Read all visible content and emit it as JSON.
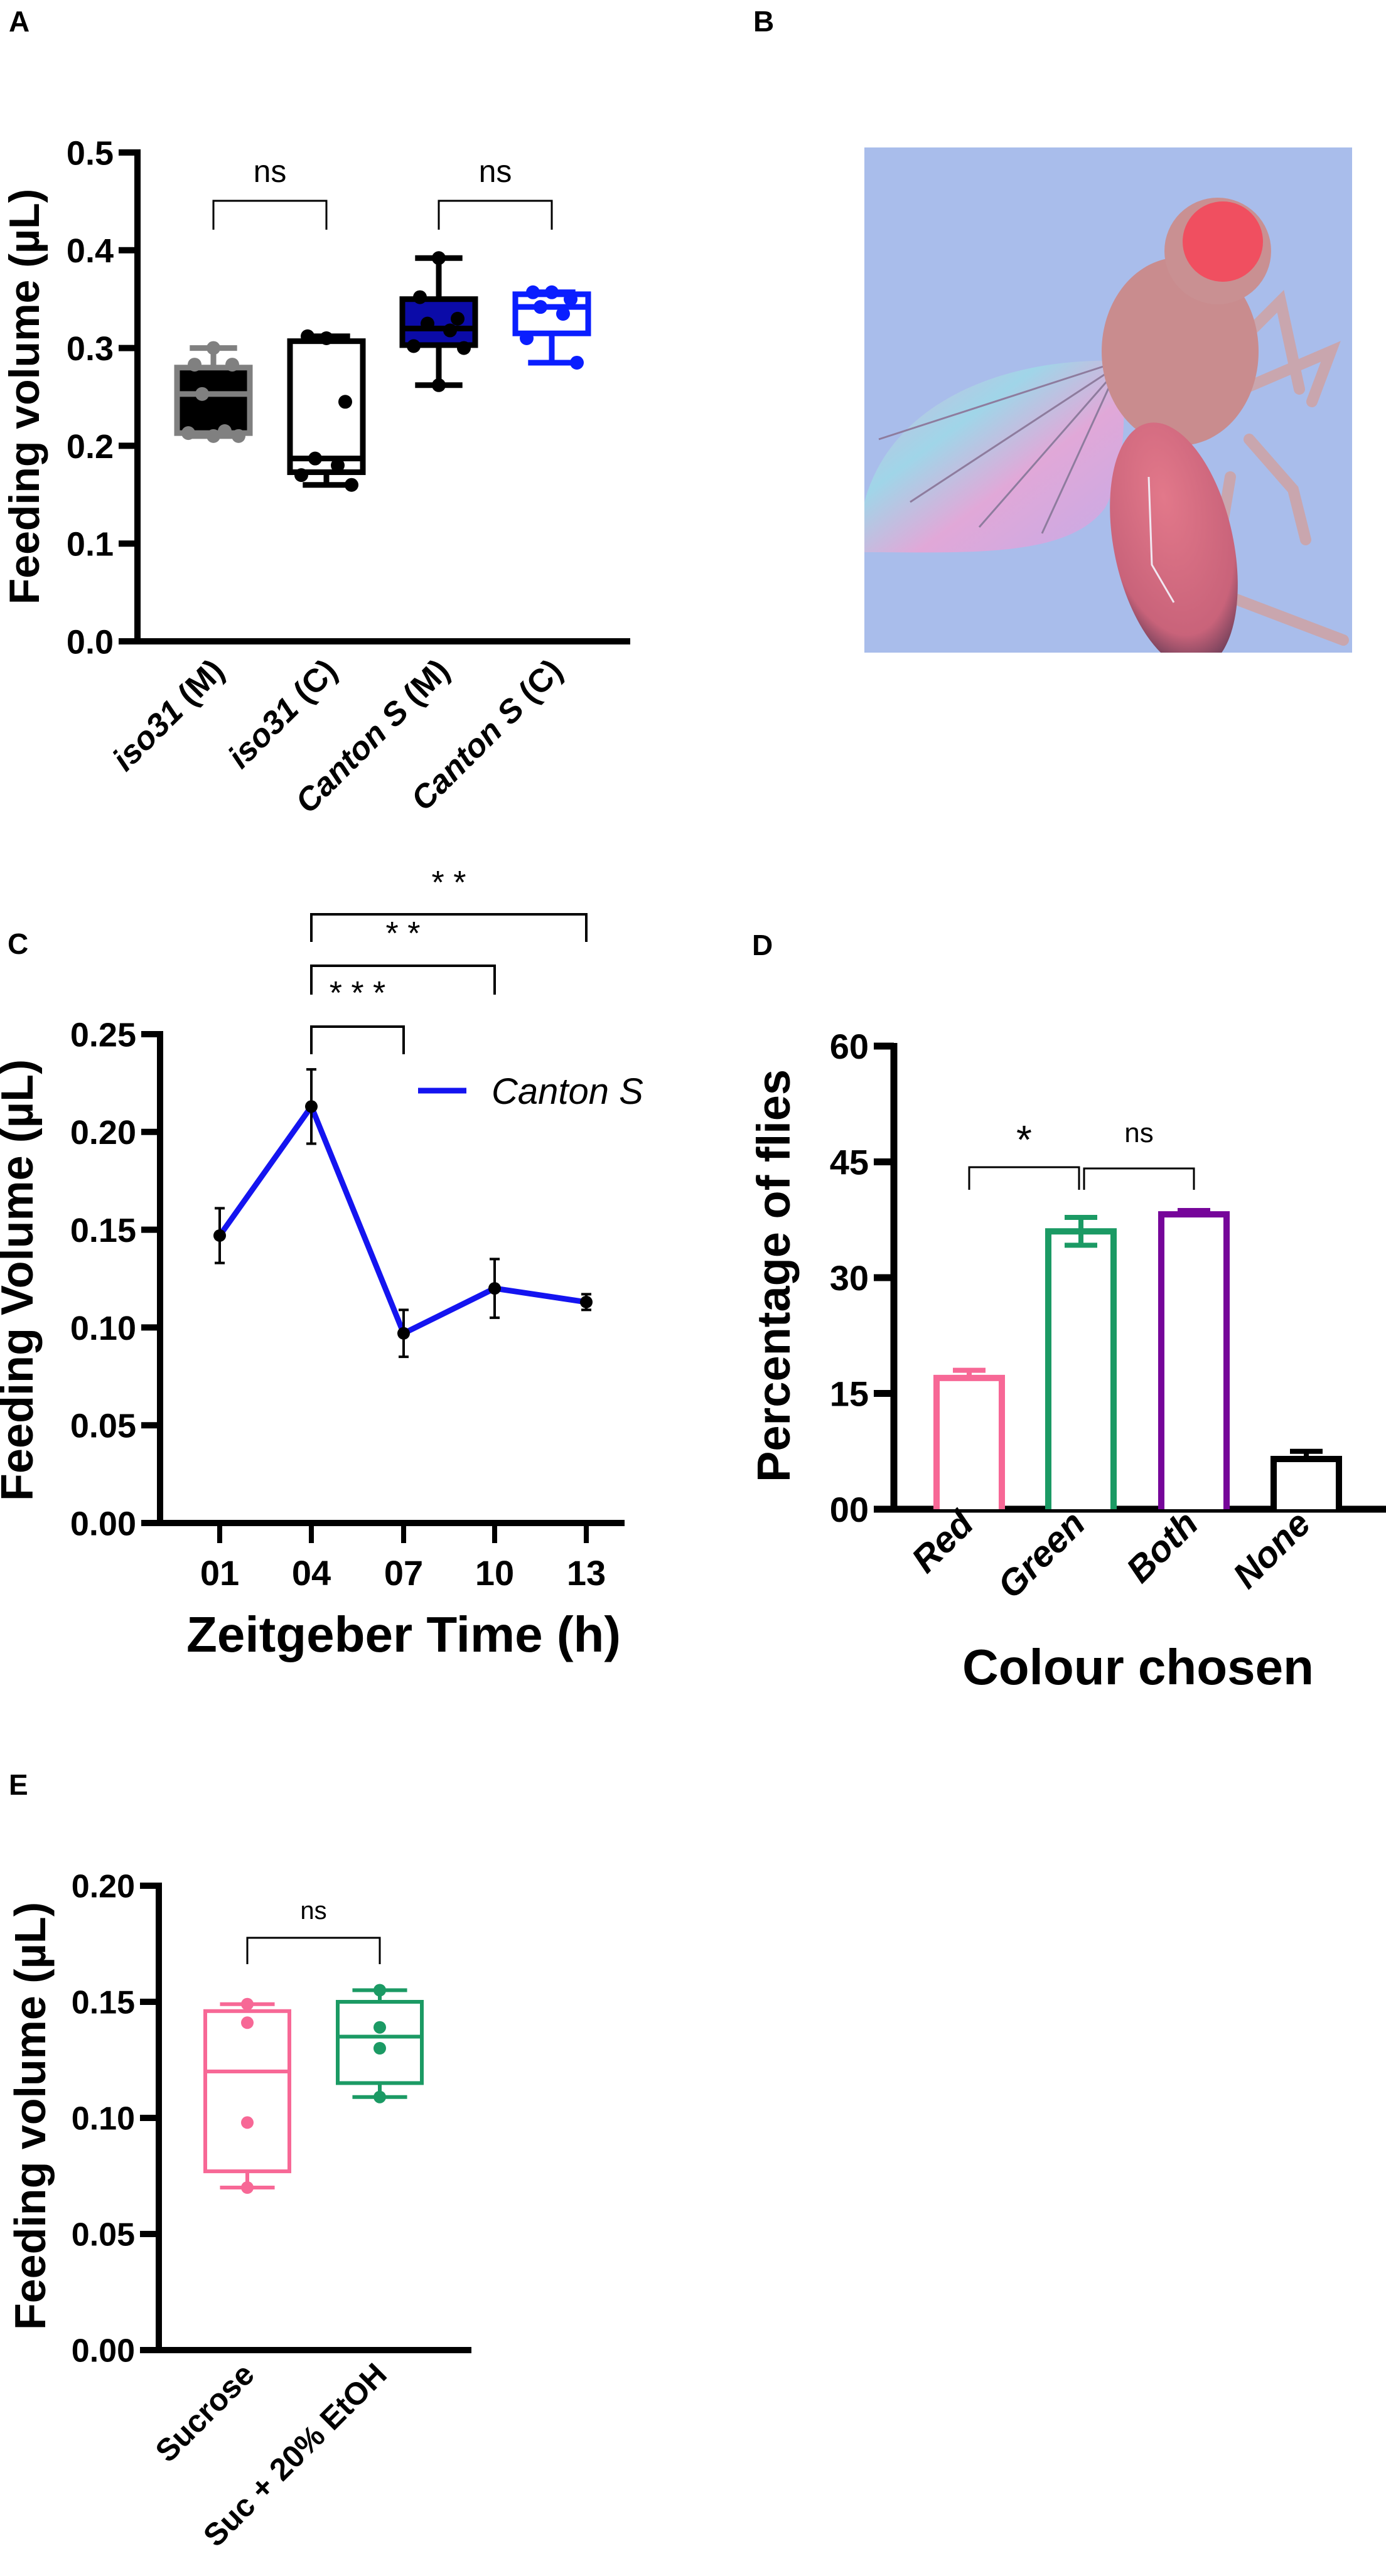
{
  "panels": [
    "A",
    "B",
    "C",
    "D",
    "E"
  ],
  "chart_data": [
    {
      "panel": "A",
      "type": "box",
      "ylabel": "Feeding volume (µL)",
      "xlabel": "",
      "ylim": [
        0,
        0.5
      ],
      "yticks": [
        "0.0",
        "0.1",
        "0.2",
        "0.3",
        "0.4",
        "0.5"
      ],
      "categories": [
        "iso31 (M)",
        "iso31 (C)",
        "Canton S (M)",
        "Canton S (C)"
      ],
      "category_parts": [
        [
          "iso31",
          " (M)"
        ],
        [
          "iso31",
          " (C)"
        ],
        [
          "Canton S",
          " (M)"
        ],
        [
          "Canton S",
          " (C)"
        ]
      ],
      "series": [
        {
          "min": 0.21,
          "q1": 0.213,
          "median": 0.253,
          "q3": 0.28,
          "max": 0.3,
          "points": [
            0.3,
            0.283,
            0.283,
            0.253,
            0.215,
            0.213,
            0.21,
            0.21
          ]
        },
        {
          "min": 0.16,
          "q1": 0.173,
          "median": 0.187,
          "q3": 0.307,
          "max": 0.312,
          "points": [
            0.31,
            0.312,
            0.245,
            0.187,
            0.18,
            0.17,
            0.16
          ]
        },
        {
          "min": 0.262,
          "q1": 0.303,
          "median": 0.32,
          "q3": 0.35,
          "max": 0.392,
          "points": [
            0.392,
            0.352,
            0.33,
            0.325,
            0.318,
            0.302,
            0.3,
            0.262
          ]
        },
        {
          "min": 0.285,
          "q1": 0.315,
          "median": 0.342,
          "q3": 0.355,
          "max": 0.357,
          "points": [
            0.357,
            0.357,
            0.35,
            0.342,
            0.335,
            0.31,
            0.285
          ]
        }
      ],
      "colors": [
        {
          "fill": "#000000",
          "stroke": "#808080",
          "point": "#808080"
        },
        {
          "fill": "#ffffff",
          "stroke": "#000000",
          "point": "#000000"
        },
        {
          "fill": "#0B0BA8",
          "stroke": "#000000",
          "point": "#000000"
        },
        {
          "fill": "#ffffff",
          "stroke": "#0A1EFF",
          "point": "#0A1EFF"
        }
      ],
      "annotations": [
        {
          "between": [
            0,
            1
          ],
          "label": "ns"
        },
        {
          "between": [
            2,
            3
          ],
          "label": "ns"
        }
      ]
    },
    {
      "panel": "C",
      "type": "line",
      "ylabel": "Feeding Volume (µL)",
      "xlabel": "Zeitgeber Time (h)",
      "ylim": [
        0,
        0.25
      ],
      "yticks": [
        "0.00",
        "0.05",
        "0.10",
        "0.15",
        "0.20",
        "0.25"
      ],
      "x": [
        "01",
        "04",
        "07",
        "10",
        "13"
      ],
      "series": [
        {
          "name": "Canton S",
          "color": "#1414F0",
          "y": [
            0.147,
            0.213,
            0.097,
            0.12,
            0.113
          ],
          "err": [
            0.014,
            0.019,
            0.012,
            0.015,
            0.004
          ]
        }
      ],
      "legend": "top-right",
      "annotations": [
        {
          "between": [
            1,
            2
          ],
          "label": "* * *"
        },
        {
          "between": [
            1,
            3
          ],
          "label": "* *"
        },
        {
          "between": [
            1,
            4
          ],
          "label": "* *"
        }
      ]
    },
    {
      "panel": "D",
      "type": "bar",
      "ylabel": "Percentage of flies",
      "xlabel": "Colour chosen",
      "ylim": [
        0,
        60
      ],
      "yticks": [
        "00",
        "15",
        "30",
        "45",
        "60"
      ],
      "categories": [
        "Red",
        "Green",
        "Both",
        "None"
      ],
      "values": [
        17,
        36,
        38.2,
        6.5
      ],
      "err": [
        1,
        1.8,
        0.5,
        1
      ],
      "colors": [
        "#F76896",
        "#1B9A64",
        "#76069A",
        "#000000"
      ],
      "annotations": [
        {
          "between": [
            0,
            1
          ],
          "label": "*"
        },
        {
          "between": [
            1,
            2
          ],
          "label": "ns"
        }
      ]
    },
    {
      "panel": "E",
      "type": "box",
      "ylabel": "Feeding volume (µL)",
      "xlabel": "",
      "ylim": [
        0,
        0.2
      ],
      "yticks": [
        "0.00",
        "0.05",
        "0.10",
        "0.15",
        "0.20"
      ],
      "categories": [
        "Sucrose",
        "Suc + 20% EtOH"
      ],
      "series": [
        {
          "min": 0.07,
          "q1": 0.077,
          "median": 0.12,
          "q3": 0.146,
          "max": 0.149,
          "points": [
            0.149,
            0.141,
            0.098,
            0.07
          ]
        },
        {
          "min": 0.109,
          "q1": 0.115,
          "median": 0.135,
          "q3": 0.15,
          "max": 0.155,
          "points": [
            0.155,
            0.139,
            0.13,
            0.109
          ]
        }
      ],
      "colors": [
        {
          "fill": "#ffffff",
          "stroke": "#F76896",
          "point": "#F76896"
        },
        {
          "fill": "#ffffff",
          "stroke": "#1B9A64",
          "point": "#1B9A64"
        }
      ],
      "annotations": [
        {
          "between": [
            0,
            1
          ],
          "label": "ns"
        }
      ]
    }
  ]
}
